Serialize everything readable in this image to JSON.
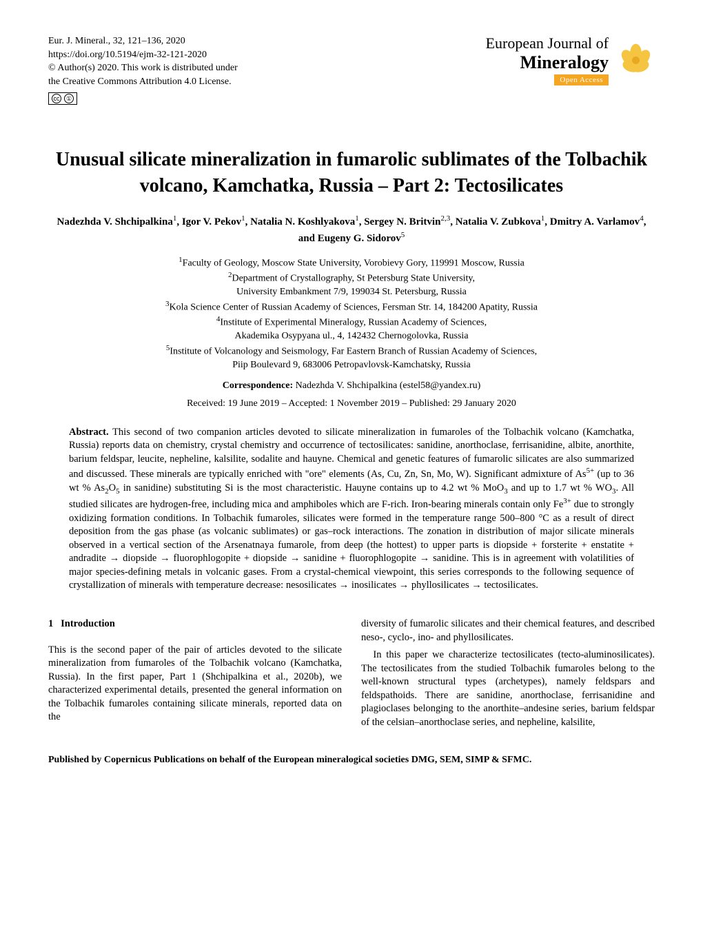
{
  "meta": {
    "citation": "Eur. J. Mineral., 32, 121–136, 2020",
    "doi": "https://doi.org/10.5194/ejm-32-121-2020",
    "copyright": "© Author(s) 2020. This work is distributed under",
    "license": "the Creative Commons Attribution 4.0 License."
  },
  "brand": {
    "line1": "European Journal of",
    "line2": "Mineralogy",
    "openaccess": "Open Access"
  },
  "title": "Unusual silicate mineralization in fumarolic sublimates of the Tolbachik volcano, Kamchatka, Russia – Part 2: Tectosilicates",
  "authors_html": "Nadezhda V. Shchipalkina<sup>1</sup>, Igor V. Pekov<sup>1</sup>, Natalia N. Koshlyakova<sup>1</sup>, Sergey N. Britvin<sup>2,3</sup>, Natalia V. Zubkova<sup>1</sup>, Dmitry A. Varlamov<sup>4</sup>, and Eugeny G. Sidorov<sup>5</sup>",
  "affiliations_html": "<sup>1</sup>Faculty of Geology, Moscow State University, Vorobievy Gory, 119991 Moscow, Russia<br><sup>2</sup>Department of Crystallography, St Petersburg State University,<br>University Embankment 7/9, 199034 St. Petersburg, Russia<br><sup>3</sup>Kola Science Center of Russian Academy of Sciences, Fersman Str. 14, 184200 Apatity, Russia<br><sup>4</sup>Institute of Experimental Mineralogy, Russian Academy of Sciences,<br>Akademika Osypyana ul., 4, 142432 Chernogolovka, Russia<br><sup>5</sup>Institute of Volcanology and Seismology, Far Eastern Branch of Russian Academy of Sciences,<br>Piip Boulevard 9, 683006 Petropavlovsk-Kamchatsky, Russia",
  "correspondence": {
    "label": "Correspondence:",
    "text": "Nadezhda V. Shchipalkina (estel58@yandex.ru)"
  },
  "dates": "Received: 19 June 2019 – Accepted: 1 November 2019 – Published: 29 January 2020",
  "abstract_label": "Abstract.",
  "abstract_html": "This second of two companion articles devoted to silicate mineralization in fumaroles of the Tolbachik volcano (Kamchatka, Russia) reports data on chemistry, crystal chemistry and occurrence of tectosilicates: sanidine, anorthoclase, ferrisanidine, albite, anorthite, barium feldspar, leucite, nepheline, kalsilite, sodalite and hauyne. Chemical and genetic features of fumarolic silicates are also summarized and discussed. These minerals are typically enriched with \"ore\" elements (As, Cu, Zn, Sn, Mo, W). Significant admixture of As<sup>5+</sup> (up to 36 wt % As<sub>2</sub>O<sub>5</sub> in sanidine) substituting Si is the most characteristic. Hauyne contains up to 4.2 wt % MoO<sub>3</sub> and up to 1.7 wt % WO<sub>3</sub>. All studied silicates are hydrogen-free, including mica and amphiboles which are F-rich. Iron-bearing minerals contain only Fe<sup>3+</sup> due to strongly oxidizing formation conditions. In Tolbachik fumaroles, silicates were formed in the temperature range 500–800 °C as a result of direct deposition from the gas phase (as volcanic sublimates) or gas–rock interactions. The zonation in distribution of major silicate minerals observed in a vertical section of the Arsenatnaya fumarole, from deep (the hottest) to upper parts is diopside + forsterite + enstatite + andradite → diopside → fluorophlogopite + diopside → sanidine + fluorophlogopite → sanidine. This is in agreement with volatilities of major species-defining metals in volcanic gases. From a crystal-chemical viewpoint, this series corresponds to the following sequence of crystallization of minerals with temperature decrease: nesosilicates → inosilicates → phyllosilicates → tectosilicates.",
  "section1": {
    "number": "1",
    "title": "Introduction"
  },
  "col1_html": "This is the second paper of the pair of articles devoted to the silicate mineralization from fumaroles of the Tolbachik volcano (Kamchatka, Russia). In the first paper, Part 1 (Shchipalkina et al., 2020b), we characterized experimental details, presented the general information on the Tolbachik fumaroles containing silicate minerals, reported data on the",
  "col2_p1": "diversity of fumarolic silicates and their chemical features, and described neso-, cyclo-, ino- and phyllosilicates.",
  "col2_p2": "In this paper we characterize tectosilicates (tecto-aluminosilicates). The tectosilicates from the studied Tolbachik fumaroles belong to the well-known structural types (archetypes), namely feldspars and feldspathoids. There are sanidine, anorthoclase, ferrisanidine and plagioclases belonging to the anorthite–andesine series, barium feldspar of the celsian–anorthoclase series, and nepheline, kalsilite,",
  "footer": "Published by Copernicus Publications on behalf of the European mineralogical societies DMG, SEM, SIMP & SFMC."
}
